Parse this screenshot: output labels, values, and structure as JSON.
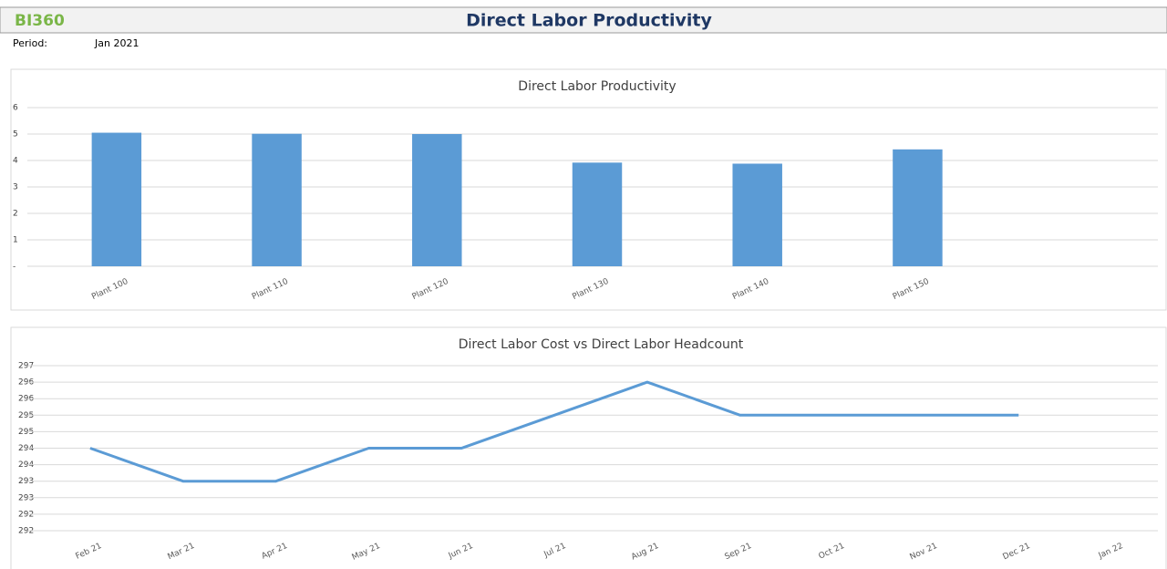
{
  "header": {
    "logo": "BI360",
    "title": "Direct Labor Productivity",
    "period_label": "Period:",
    "period_value": "Jan 2021"
  },
  "chart_data": [
    {
      "type": "bar",
      "title": "Direct Labor Productivity",
      "categories": [
        "Plant 100",
        "Plant 110",
        "Plant 120",
        "Plant 130",
        "Plant 140",
        "Plant 150",
        null
      ],
      "values": [
        5.05,
        5.01,
        5.0,
        3.92,
        3.88,
        4.42,
        null
      ],
      "color": "#5b9bd5",
      "ylim": [
        0,
        6
      ],
      "yticks": [
        {
          "value": 0,
          "label": "-"
        },
        1,
        2,
        3,
        4,
        5,
        6
      ],
      "grid": true
    },
    {
      "type": "line",
      "title": "Direct Labor Cost vs Direct Labor Headcount",
      "categories": [
        "Feb 21",
        "Mar 21",
        "Apr 21",
        "May 21",
        "Jun 21",
        "Jul 21",
        "Aug 21",
        "Sep 21",
        "Oct 21",
        "Nov 21",
        "Dec 21",
        "Jan 22"
      ],
      "values": [
        294.5,
        293.5,
        293.5,
        294.5,
        294.5,
        295.5,
        296.5,
        295.5,
        295.5,
        295.5,
        295.5,
        null
      ],
      "color": "#5b9bd5",
      "ylim": [
        292,
        297
      ],
      "yticks": [
        292,
        {
          "value": 292.5,
          "label": "292"
        },
        293,
        {
          "value": 293.5,
          "label": "293"
        },
        294,
        {
          "value": 294.5,
          "label": "294"
        },
        295,
        {
          "value": 295.5,
          "label": "295"
        },
        296,
        {
          "value": 296.5,
          "label": "296"
        },
        297
      ],
      "grid": true
    }
  ]
}
